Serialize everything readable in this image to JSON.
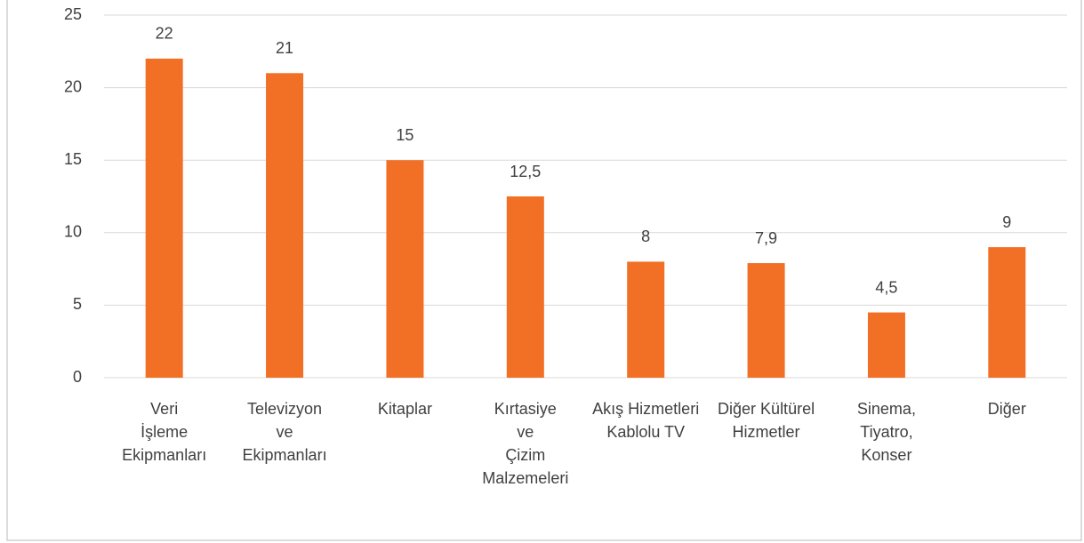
{
  "chart_data": {
    "type": "bar",
    "categories": [
      "Veri\nİşleme\nEkipmanları",
      "Televizyon\nve\nEkipmanları",
      "Kitaplar",
      "Kırtasiye\nve\nÇizim\nMalzemeleri",
      "Akış Hizmetleri\nKablolu TV",
      "Diğer Kültürel\nHizmetler",
      "Sinema,\nTiyatro,\nKonser",
      "Diğer"
    ],
    "values": [
      22,
      21,
      15,
      12.5,
      8,
      7.9,
      4.5,
      9
    ],
    "value_labels": [
      "22",
      "21",
      "15",
      "12,5",
      "8",
      "7,9",
      "4,5",
      "9"
    ],
    "color": "#f27026",
    "ylim": [
      0,
      25
    ],
    "yticks": [
      0,
      5,
      10,
      15,
      20,
      25
    ],
    "grid": true
  }
}
